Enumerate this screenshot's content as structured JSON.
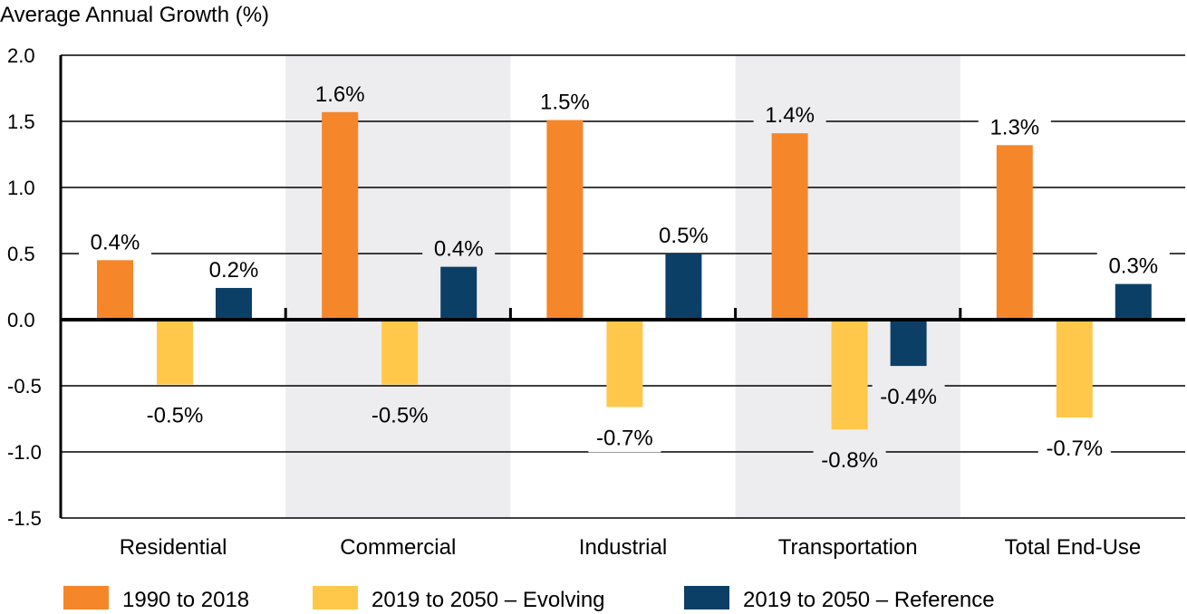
{
  "chart_data": {
    "type": "bar",
    "ylabel": "Average Annual Growth (%)",
    "ylim": [
      -1.5,
      2.0
    ],
    "yticks": [
      "2.0",
      "1.5",
      "1.0",
      "0.5",
      "0.0",
      "-0.5",
      "-1.0",
      "-1.5"
    ],
    "grid": true,
    "legend_position": "bottom",
    "categories": [
      "Residential",
      "Commercial",
      "Industrial",
      "Transportation",
      "Total End-Use"
    ],
    "shaded_categories": [
      "Commercial",
      "Transportation"
    ],
    "series": [
      {
        "name": "1990 to 2018",
        "color": "#F5862A",
        "values": [
          0.45,
          1.57,
          1.51,
          1.41,
          1.32
        ],
        "labels": [
          "0.4%",
          "1.6%",
          "1.5%",
          "1.4%",
          "1.3%"
        ]
      },
      {
        "name": "2019 to 2050 – Evolving",
        "color": "#FFC84A",
        "values": [
          -0.49,
          -0.49,
          -0.66,
          -0.83,
          -0.74
        ],
        "labels": [
          "-0.5%",
          "-0.5%",
          "-0.7%",
          "-0.8%",
          "-0.7%"
        ]
      },
      {
        "name": "2019 to 2050 – Reference",
        "color": "#0B3F66",
        "values": [
          0.24,
          0.4,
          0.5,
          -0.35,
          0.27
        ],
        "labels": [
          "0.2%",
          "0.4%",
          "0.5%",
          "-0.4%",
          "0.3%"
        ]
      }
    ],
    "colors": {
      "band": "#EDEDEF",
      "axis": "#000000"
    }
  }
}
